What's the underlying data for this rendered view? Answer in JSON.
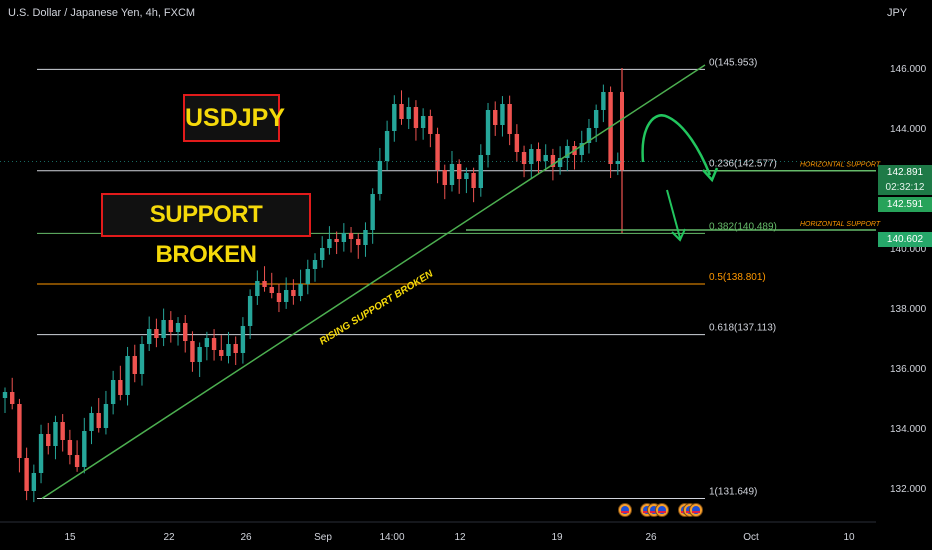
{
  "header": {
    "symbol_title": "U.S. Dollar / Japanese Yen, 4h, FXCM",
    "currency": "JPY"
  },
  "annotations": {
    "symbol_box": "USDJPY",
    "support_box": "SUPPORT BROKEN",
    "trendline_label": "RISING SUPPORT BROKEN",
    "horizontal_support_label": "HORIZONTAL SUPPORT"
  },
  "colors": {
    "up": "#26a69a",
    "down": "#ef5350",
    "trendline": "#4caf50",
    "arrow": "#22c55e",
    "box_border": "#e21b1b",
    "box_text": "#f5d90a",
    "fib_white": "#d1d4dc",
    "fib_green": "#66bb6a",
    "fib_orange": "#ff9800",
    "horizontal_label": "#ff9800"
  },
  "price_tags": {
    "current_price": "142.891",
    "countdown": "02:32:12",
    "secondary_price": "142.591",
    "line_price": "140.602"
  },
  "chart_data": {
    "type": "candlestick",
    "title": "U.S. Dollar / Japanese Yen, 4h, FXCM",
    "ylabel": "JPY",
    "ylim": [
      131.1,
      147.6
    ],
    "y_ticks": [
      132,
      134,
      136,
      138,
      140,
      142,
      144,
      146
    ],
    "y_tick_labels": [
      "132.000",
      "134.000",
      "136.000",
      "138.000",
      "140.000",
      "142.000",
      "144.000",
      "146.000"
    ],
    "x_tick_labels": [
      "15",
      "22",
      "26",
      "Sep",
      "14:00",
      "12",
      "19",
      "26",
      "Oct",
      "10"
    ],
    "fib_levels": [
      {
        "ratio": "0",
        "price": 145.953,
        "label": "0(145.953)"
      },
      {
        "ratio": "0.236",
        "price": 142.577,
        "label": "0.236(142.577)"
      },
      {
        "ratio": "0.382",
        "price": 140.489,
        "label": "0.382(140.489)"
      },
      {
        "ratio": "0.5",
        "price": 138.801,
        "label": "0.5(138.801)"
      },
      {
        "ratio": "0.618",
        "price": 137.113,
        "label": "0.618(137.113)"
      },
      {
        "ratio": "1",
        "price": 131.649,
        "label": "1(131.649)"
      }
    ],
    "horizontal_supports": [
      142.577,
      140.602
    ],
    "trendline": {
      "from_price": 131.649,
      "to_price": 146.1
    },
    "price_path": [
      135.0,
      135.2,
      134.8,
      133.0,
      131.9,
      132.5,
      133.8,
      133.4,
      134.2,
      133.6,
      133.1,
      132.7,
      133.9,
      134.5,
      134.0,
      134.8,
      135.6,
      135.1,
      136.4,
      135.8,
      136.8,
      137.3,
      137.0,
      137.6,
      137.2,
      137.5,
      136.9,
      136.2,
      136.7,
      137.0,
      136.6,
      136.4,
      136.8,
      136.5,
      137.4,
      138.4,
      138.9,
      138.7,
      138.5,
      138.2,
      138.6,
      138.4,
      138.8,
      139.3,
      139.6,
      140.0,
      140.3,
      140.2,
      140.5,
      140.3,
      140.1,
      140.6,
      141.8,
      142.9,
      143.9,
      144.8,
      144.3,
      144.7,
      144.0,
      144.4,
      143.8,
      142.6,
      142.1,
      142.8,
      142.3,
      142.5,
      142.0,
      143.1,
      144.6,
      144.1,
      144.8,
      143.8,
      143.2,
      142.8,
      143.3,
      142.9,
      143.1,
      142.7,
      143.0,
      143.4,
      143.1,
      143.5,
      144.0,
      144.6,
      145.2,
      142.8,
      142.9
    ]
  }
}
